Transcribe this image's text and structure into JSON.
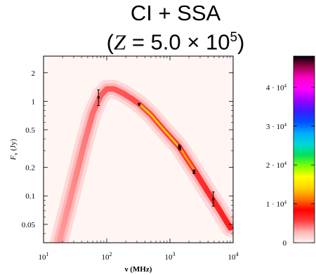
{
  "title": {
    "line1": "CI + SSA",
    "line2_prefix": "(",
    "line2_var": "Z",
    "line2_mid": " = 5.0 × 10",
    "line2_exp": "5",
    "line2_suffix": ")"
  },
  "chart_data": {
    "type": "scatter",
    "xlabel": "ν (MHz)",
    "ylabel": "Fν (Jy)",
    "x_scale": "log",
    "y_scale": "log",
    "xlim": [
      10,
      10000
    ],
    "ylim": [
      0.032,
      3.0
    ],
    "x_ticks": [
      {
        "value": 10,
        "base": "10",
        "exp": "1"
      },
      {
        "value": 100,
        "base": "10",
        "exp": "2"
      },
      {
        "value": 1000,
        "base": "10",
        "exp": "3"
      },
      {
        "value": 10000,
        "base": "10",
        "exp": "4"
      }
    ],
    "y_ticks": [
      {
        "value": 2,
        "label": "2"
      },
      {
        "value": 1,
        "label": "1"
      },
      {
        "value": 0.5,
        "label": "0.5"
      },
      {
        "value": 0.2,
        "label": "0.2"
      },
      {
        "value": 0.1,
        "label": "0.1"
      },
      {
        "value": 0.05,
        "label": "0.05"
      }
    ],
    "points": [
      {
        "x": 74,
        "y": 1.1,
        "yerr_low": 0.9,
        "yerr_high": 1.32
      },
      {
        "x": 327,
        "y": 0.93,
        "yerr_low": 0.91,
        "yerr_high": 0.95
      },
      {
        "x": 1400,
        "y": 0.33,
        "yerr_low": 0.315,
        "yerr_high": 0.345
      },
      {
        "x": 1450,
        "y": 0.32,
        "yerr_low": 0.305,
        "yerr_high": 0.335
      },
      {
        "x": 2400,
        "y": 0.18,
        "yerr_low": 0.172,
        "yerr_high": 0.188
      },
      {
        "x": 4850,
        "y": 0.092,
        "yerr_low": 0.078,
        "yerr_high": 0.11
      }
    ],
    "model_band_curve": [
      {
        "x": 12,
        "y": 0.012
      },
      {
        "x": 20,
        "y": 0.045
      },
      {
        "x": 30,
        "y": 0.13
      },
      {
        "x": 45,
        "y": 0.38
      },
      {
        "x": 60,
        "y": 0.75
      },
      {
        "x": 80,
        "y": 1.15
      },
      {
        "x": 100,
        "y": 1.35
      },
      {
        "x": 130,
        "y": 1.35
      },
      {
        "x": 180,
        "y": 1.22
      },
      {
        "x": 250,
        "y": 1.06
      },
      {
        "x": 330,
        "y": 0.93
      },
      {
        "x": 500,
        "y": 0.72
      },
      {
        "x": 800,
        "y": 0.5
      },
      {
        "x": 1400,
        "y": 0.33
      },
      {
        "x": 2400,
        "y": 0.19
      },
      {
        "x": 4000,
        "y": 0.11
      },
      {
        "x": 6000,
        "y": 0.072
      },
      {
        "x": 9000,
        "y": 0.046
      }
    ],
    "colorbar": {
      "min": 0,
      "max": 48000,
      "ticks": [
        {
          "value": 0,
          "base": "0",
          "exp": ""
        },
        {
          "value": 10000,
          "base": "1 · 10",
          "exp": "4"
        },
        {
          "value": 20000,
          "base": "2 · 10",
          "exp": "4"
        },
        {
          "value": 30000,
          "base": "3 · 10",
          "exp": "4"
        },
        {
          "value": 40000,
          "base": "4 · 10",
          "exp": "4"
        }
      ],
      "colors": [
        "#fff3f0",
        "#ffb3b3",
        "#ff3c3c",
        "#ff0000",
        "#ff7a00",
        "#ffd400",
        "#ffff00",
        "#7dff00",
        "#00e060",
        "#00d8d8",
        "#00aaff",
        "#0050ff",
        "#3a1bff",
        "#a000ff",
        "#ff00ff",
        "#ff00c8",
        "#a0004e",
        "#000000"
      ]
    }
  }
}
